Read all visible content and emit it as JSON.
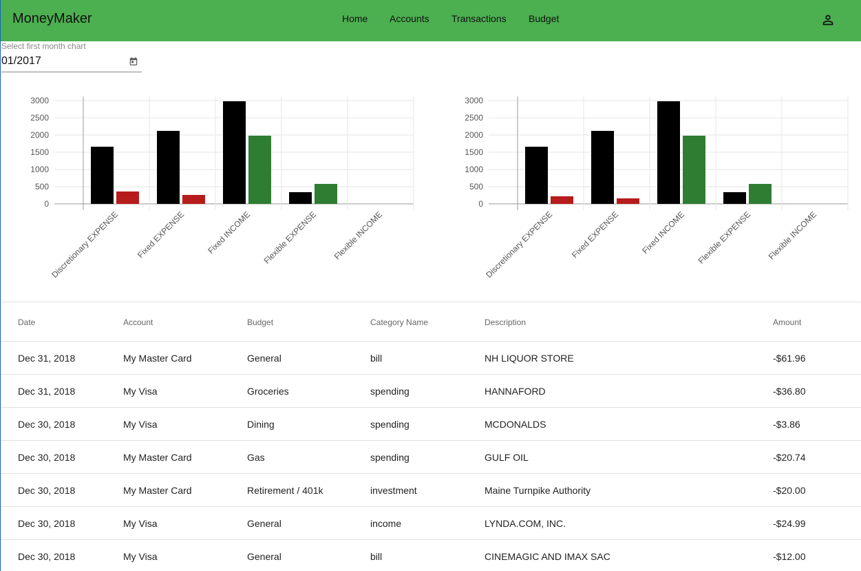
{
  "header": {
    "title": "MoneyMaker",
    "nav": [
      "Home",
      "Accounts",
      "Transactions",
      "Budget"
    ]
  },
  "date_picker": {
    "label": "Select first month chart",
    "value": "01/2017"
  },
  "chart_data": [
    {
      "type": "bar",
      "categories": [
        "Discretionary EXPENSE",
        "Fixed EXPENSE",
        "Fixed INCOME",
        "Flexible EXPENSE",
        "Flexible INCOME"
      ],
      "series": [
        {
          "color": "#000000",
          "values": [
            1660,
            2120,
            2980,
            340,
            0
          ]
        },
        {
          "colors": [
            "#b71c1c",
            "#b71c1c",
            "#2e7d32",
            "#2e7d32",
            "#2e7d32"
          ],
          "values": [
            360,
            260,
            1980,
            580,
            0
          ]
        }
      ],
      "ylim": [
        0,
        3000
      ],
      "yticks": [
        0,
        500,
        1000,
        1500,
        2000,
        2500,
        3000
      ],
      "grid": true
    },
    {
      "type": "bar",
      "categories": [
        "Discretionary EXPENSE",
        "Fixed EXPENSE",
        "Fixed INCOME",
        "Flexible EXPENSE",
        "Flexible INCOME"
      ],
      "series": [
        {
          "color": "#000000",
          "values": [
            1660,
            2120,
            2980,
            340,
            0
          ]
        },
        {
          "colors": [
            "#b71c1c",
            "#b71c1c",
            "#2e7d32",
            "#2e7d32",
            "#2e7d32"
          ],
          "values": [
            220,
            160,
            1980,
            580,
            0
          ]
        }
      ],
      "ylim": [
        0,
        3000
      ],
      "yticks": [
        0,
        500,
        1000,
        1500,
        2000,
        2500,
        3000
      ],
      "grid": true
    }
  ],
  "table": {
    "columns": [
      "Date",
      "Account",
      "Budget",
      "Category Name",
      "Description",
      "Amount"
    ],
    "rows": [
      [
        "Dec 31, 2018",
        "My Master Card",
        "General",
        "bill",
        "NH LIQUOR STORE",
        "-$61.96"
      ],
      [
        "Dec 31, 2018",
        "My Visa",
        "Groceries",
        "spending",
        "HANNAFORD",
        "-$36.80"
      ],
      [
        "Dec 30, 2018",
        "My Visa",
        "Dining",
        "spending",
        "MCDONALDS",
        "-$3.86"
      ],
      [
        "Dec 30, 2018",
        "My Master Card",
        "Gas",
        "spending",
        "GULF OIL",
        "-$20.74"
      ],
      [
        "Dec 30, 2018",
        "My Master Card",
        "Retirement / 401k",
        "investment",
        "Maine Turnpike Authority",
        "-$20.00"
      ],
      [
        "Dec 30, 2018",
        "My Visa",
        "General",
        "income",
        "LYNDA.COM, INC.",
        "-$24.99"
      ],
      [
        "Dec 30, 2018",
        "My Visa",
        "General",
        "bill",
        "CINEMAGIC AND IMAX SAC",
        "-$12.00"
      ]
    ]
  }
}
